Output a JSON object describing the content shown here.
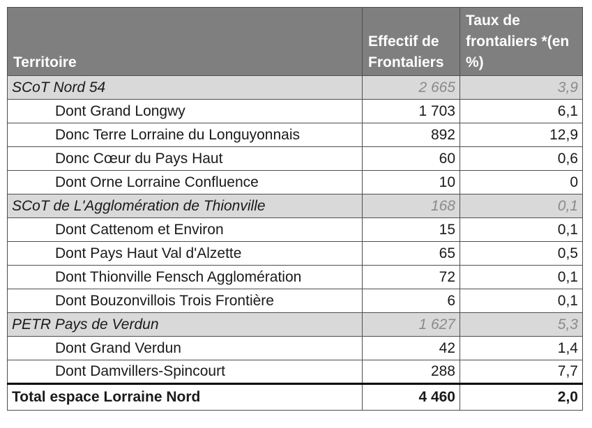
{
  "table": {
    "header": [
      "Territoire",
      "Effectif de Frontaliers",
      "Taux de frontaliers *(en %)"
    ],
    "groups": [
      {
        "name": "SCoT Nord 54",
        "effectif": "2 665",
        "taux": "3,9",
        "members": [
          [
            "Dont Grand Longwy",
            "1 703",
            "6,1"
          ],
          [
            "Donc Terre Lorraine du Longuyonnais",
            "892",
            "12,9"
          ],
          [
            "Donc Cœur du Pays Haut",
            "60",
            "0,6"
          ],
          [
            "Dont Orne Lorraine Confluence",
            "10",
            "0"
          ]
        ]
      },
      {
        "name": "SCoT de L'Agglomération de Thionville",
        "effectif": "168",
        "taux": "0,1",
        "members": [
          [
            "Dont Cattenom et Environ",
            "15",
            "0,1"
          ],
          [
            "Dont Pays Haut Val d'Alzette",
            "65",
            "0,5"
          ],
          [
            "Dont Thionville Fensch Agglomération",
            "72",
            "0,1"
          ],
          [
            "Dont Bouzonvillois Trois Frontière",
            "6",
            "0,1"
          ]
        ]
      },
      {
        "name": "PETR Pays de Verdun",
        "effectif": "1 627",
        "taux": "5,3",
        "members": [
          [
            "Dont Grand Verdun",
            "42",
            "1,4"
          ],
          [
            "Dont Damvillers-Spincourt",
            "288",
            "7,7"
          ]
        ]
      }
    ],
    "total": [
      "Total espace Lorraine Nord",
      "4 460",
      "2,0"
    ]
  }
}
